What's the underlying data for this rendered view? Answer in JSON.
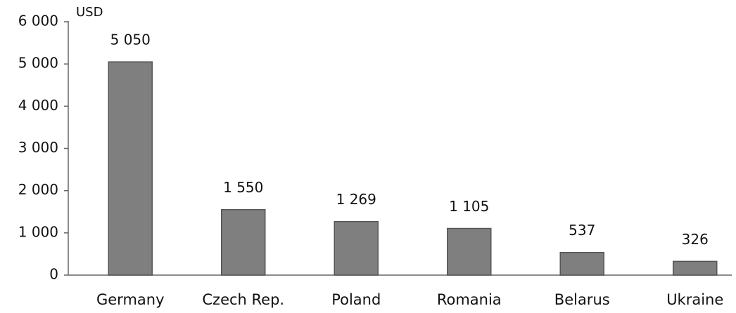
{
  "chart_data": {
    "type": "bar",
    "y_label": "USD",
    "categories": [
      "Germany",
      "Czech Rep.",
      "Poland",
      "Romania",
      "Belarus",
      "Ukraine"
    ],
    "values": [
      5050,
      1550,
      1269,
      1105,
      537,
      326
    ],
    "value_labels": [
      "5 050",
      "1 550",
      "1 269",
      "1 105",
      "537",
      "326"
    ],
    "color": "#7f7f7f",
    "ylim": [
      0,
      6000
    ],
    "yticks": [
      0,
      {
        "value": 1000,
        "label": "1 000"
      },
      {
        "value": 2000,
        "label": "2 000"
      },
      {
        "value": 3000,
        "label": "3 000"
      },
      {
        "value": 4000,
        "label": "4 000"
      },
      {
        "value": 5000,
        "label": "5 000"
      },
      {
        "value": 6000,
        "label": "6 000"
      }
    ],
    "grid": false
  }
}
